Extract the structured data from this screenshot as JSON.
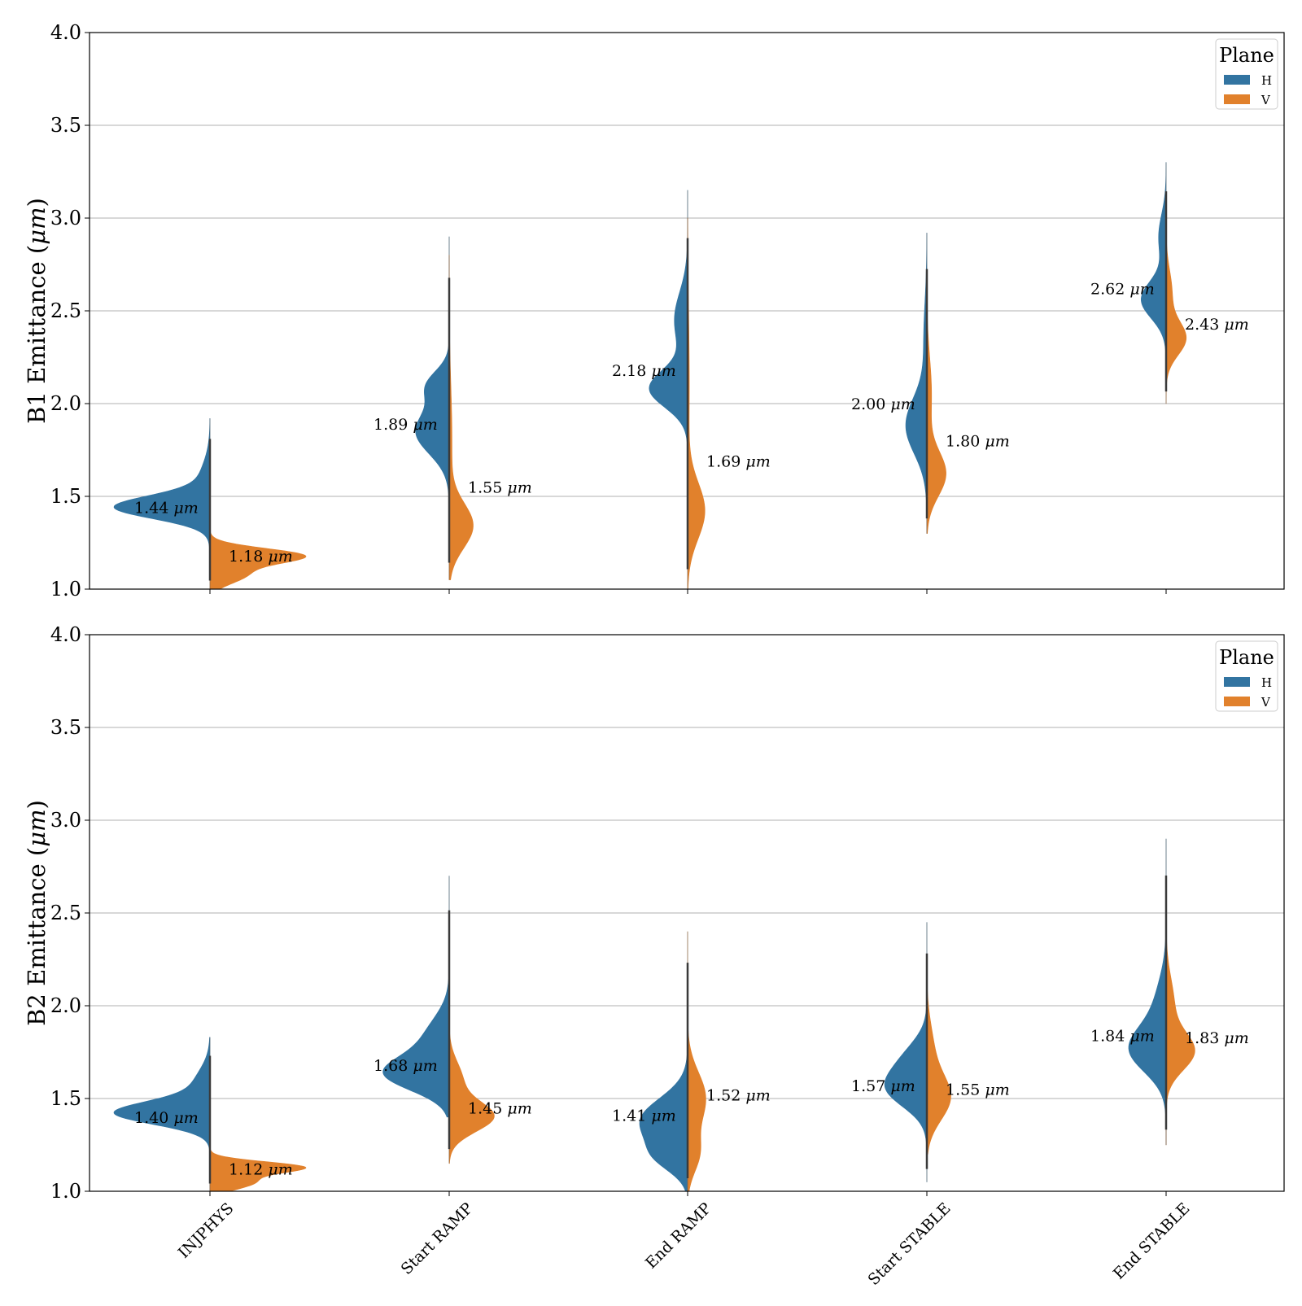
{
  "colors": {
    "H": "#3274a1",
    "V": "#e1812c"
  },
  "chart_data": [
    {
      "type": "violin",
      "ylabel": "B1 Emittance (μm)",
      "ylim": [
        1.0,
        4.0
      ],
      "yticks": [
        "1.0",
        "1.5",
        "2.0",
        "2.5",
        "3.0",
        "3.5",
        "4.0"
      ],
      "categories": [
        "INJPHYS",
        "Start RAMP",
        "End RAMP",
        "Start STABLE",
        "End STABLE"
      ],
      "grid": "horizontal",
      "legend": {
        "title": "Plane",
        "entries": [
          "H",
          "V"
        ],
        "position": "top-right"
      },
      "series": [
        {
          "name": "H",
          "median_labels": [
            "1.44 μm",
            "1.89 μm",
            "2.18 μm",
            "2.00 μm",
            "2.62 μm"
          ],
          "distributions": [
            {
              "min": 1.05,
              "max": 1.92,
              "peaks": [
                {
                  "mu": 1.44,
                  "sd": 0.06,
                  "w": 1.0
                },
                {
                  "mu": 1.54,
                  "sd": 0.12,
                  "w": 0.15
                }
              ],
              "width": 1.0
            },
            {
              "min": 1.5,
              "max": 2.9,
              "peaks": [
                {
                  "mu": 1.85,
                  "sd": 0.12,
                  "w": 1.0
                },
                {
                  "mu": 2.1,
                  "sd": 0.08,
                  "w": 0.6
                }
              ],
              "width": 0.35
            },
            {
              "min": 1.75,
              "max": 3.15,
              "peaks": [
                {
                  "mu": 2.08,
                  "sd": 0.1,
                  "w": 1.0
                },
                {
                  "mu": 2.45,
                  "sd": 0.15,
                  "w": 0.35
                }
              ],
              "width": 0.4
            },
            {
              "min": 1.3,
              "max": 2.92,
              "peaks": [
                {
                  "mu": 1.88,
                  "sd": 0.15,
                  "w": 1.0
                },
                {
                  "mu": 2.35,
                  "sd": 0.2,
                  "w": 0.15
                }
              ],
              "width": 0.22
            },
            {
              "min": 2.2,
              "max": 3.3,
              "peaks": [
                {
                  "mu": 2.56,
                  "sd": 0.1,
                  "w": 1.0
                },
                {
                  "mu": 2.9,
                  "sd": 0.12,
                  "w": 0.3
                }
              ],
              "width": 0.26
            }
          ]
        },
        {
          "name": "V",
          "median_labels": [
            "1.18 μm",
            "1.55 μm",
            "1.69 μm",
            "1.80 μm",
            "2.43 μm"
          ],
          "distributions": [
            {
              "min": 1.0,
              "max": 1.4,
              "peaks": [
                {
                  "mu": 1.18,
                  "sd": 0.04,
                  "w": 1.0
                },
                {
                  "mu": 1.08,
                  "sd": 0.05,
                  "w": 0.4
                }
              ],
              "width": 1.0
            },
            {
              "min": 1.05,
              "max": 2.8,
              "peaks": [
                {
                  "mu": 1.34,
                  "sd": 0.12,
                  "w": 1.0
                },
                {
                  "mu": 1.8,
                  "sd": 0.3,
                  "w": 0.12
                }
              ],
              "width": 0.25
            },
            {
              "min": 1.0,
              "max": 3.0,
              "peaks": [
                {
                  "mu": 1.42,
                  "sd": 0.15,
                  "w": 1.0
                },
                {
                  "mu": 2.1,
                  "sd": 0.4,
                  "w": 0.1
                }
              ],
              "width": 0.18
            },
            {
              "min": 1.3,
              "max": 2.55,
              "peaks": [
                {
                  "mu": 1.62,
                  "sd": 0.12,
                  "w": 1.0
                },
                {
                  "mu": 2.05,
                  "sd": 0.2,
                  "w": 0.25
                }
              ],
              "width": 0.2
            },
            {
              "min": 2.0,
              "max": 3.0,
              "peaks": [
                {
                  "mu": 2.35,
                  "sd": 0.09,
                  "w": 1.0
                },
                {
                  "mu": 2.6,
                  "sd": 0.12,
                  "w": 0.3
                }
              ],
              "width": 0.21
            }
          ]
        }
      ]
    },
    {
      "type": "violin",
      "ylabel": "B2 Emittance (μm)",
      "ylim": [
        1.0,
        4.0
      ],
      "yticks": [
        "1.0",
        "1.5",
        "2.0",
        "2.5",
        "3.0",
        "3.5",
        "4.0"
      ],
      "categories": [
        "INJPHYS",
        "Start RAMP",
        "End RAMP",
        "Start STABLE",
        "End STABLE"
      ],
      "grid": "horizontal",
      "legend": {
        "title": "Plane",
        "entries": [
          "H",
          "V"
        ],
        "position": "top-right"
      },
      "series": [
        {
          "name": "H",
          "median_labels": [
            "1.40 μm",
            "1.68 μm",
            "1.41 μm",
            "1.57 μm",
            "1.84 μm"
          ],
          "distributions": [
            {
              "min": 1.0,
              "max": 1.83,
              "peaks": [
                {
                  "mu": 1.42,
                  "sd": 0.06,
                  "w": 1.0
                },
                {
                  "mu": 1.55,
                  "sd": 0.1,
                  "w": 0.2
                }
              ],
              "width": 1.0
            },
            {
              "min": 1.4,
              "max": 2.7,
              "peaks": [
                {
                  "mu": 1.63,
                  "sd": 0.09,
                  "w": 1.0
                },
                {
                  "mu": 1.82,
                  "sd": 0.12,
                  "w": 0.4
                }
              ],
              "width": 0.69
            },
            {
              "min": 1.0,
              "max": 2.2,
              "peaks": [
                {
                  "mu": 1.38,
                  "sd": 0.12,
                  "w": 1.0
                },
                {
                  "mu": 1.18,
                  "sd": 0.08,
                  "w": 0.5
                }
              ],
              "width": 0.5
            },
            {
              "min": 1.05,
              "max": 2.45,
              "peaks": [
                {
                  "mu": 1.55,
                  "sd": 0.1,
                  "w": 1.0
                },
                {
                  "mu": 1.72,
                  "sd": 0.1,
                  "w": 0.5
                }
              ],
              "width": 0.44
            },
            {
              "min": 1.25,
              "max": 2.9,
              "peaks": [
                {
                  "mu": 1.76,
                  "sd": 0.12,
                  "w": 1.0
                },
                {
                  "mu": 2.0,
                  "sd": 0.15,
                  "w": 0.3
                }
              ],
              "width": 0.39
            }
          ]
        },
        {
          "name": "V",
          "median_labels": [
            "1.12 μm",
            "1.45 μm",
            "1.52 μm",
            "1.55 μm",
            "1.83 μm"
          ],
          "distributions": [
            {
              "min": 1.0,
              "max": 1.3,
              "peaks": [
                {
                  "mu": 1.13,
                  "sd": 0.03,
                  "w": 1.0
                },
                {
                  "mu": 1.05,
                  "sd": 0.04,
                  "w": 0.5
                }
              ],
              "width": 1.0
            },
            {
              "min": 1.15,
              "max": 2.0,
              "peaks": [
                {
                  "mu": 1.4,
                  "sd": 0.08,
                  "w": 1.0
                },
                {
                  "mu": 1.6,
                  "sd": 0.1,
                  "w": 0.3
                }
              ],
              "width": 0.47
            },
            {
              "min": 1.0,
              "max": 2.4,
              "peaks": [
                {
                  "mu": 1.5,
                  "sd": 0.14,
                  "w": 1.0
                },
                {
                  "mu": 1.2,
                  "sd": 0.1,
                  "w": 0.6
                }
              ],
              "width": 0.19
            },
            {
              "min": 1.2,
              "max": 2.25,
              "peaks": [
                {
                  "mu": 1.5,
                  "sd": 0.12,
                  "w": 1.0
                },
                {
                  "mu": 1.75,
                  "sd": 0.15,
                  "w": 0.3
                }
              ],
              "width": 0.25
            },
            {
              "min": 1.25,
              "max": 2.5,
              "peaks": [
                {
                  "mu": 1.75,
                  "sd": 0.1,
                  "w": 1.0
                },
                {
                  "mu": 2.0,
                  "sd": 0.15,
                  "w": 0.3
                }
              ],
              "width": 0.3
            }
          ]
        }
      ]
    }
  ]
}
